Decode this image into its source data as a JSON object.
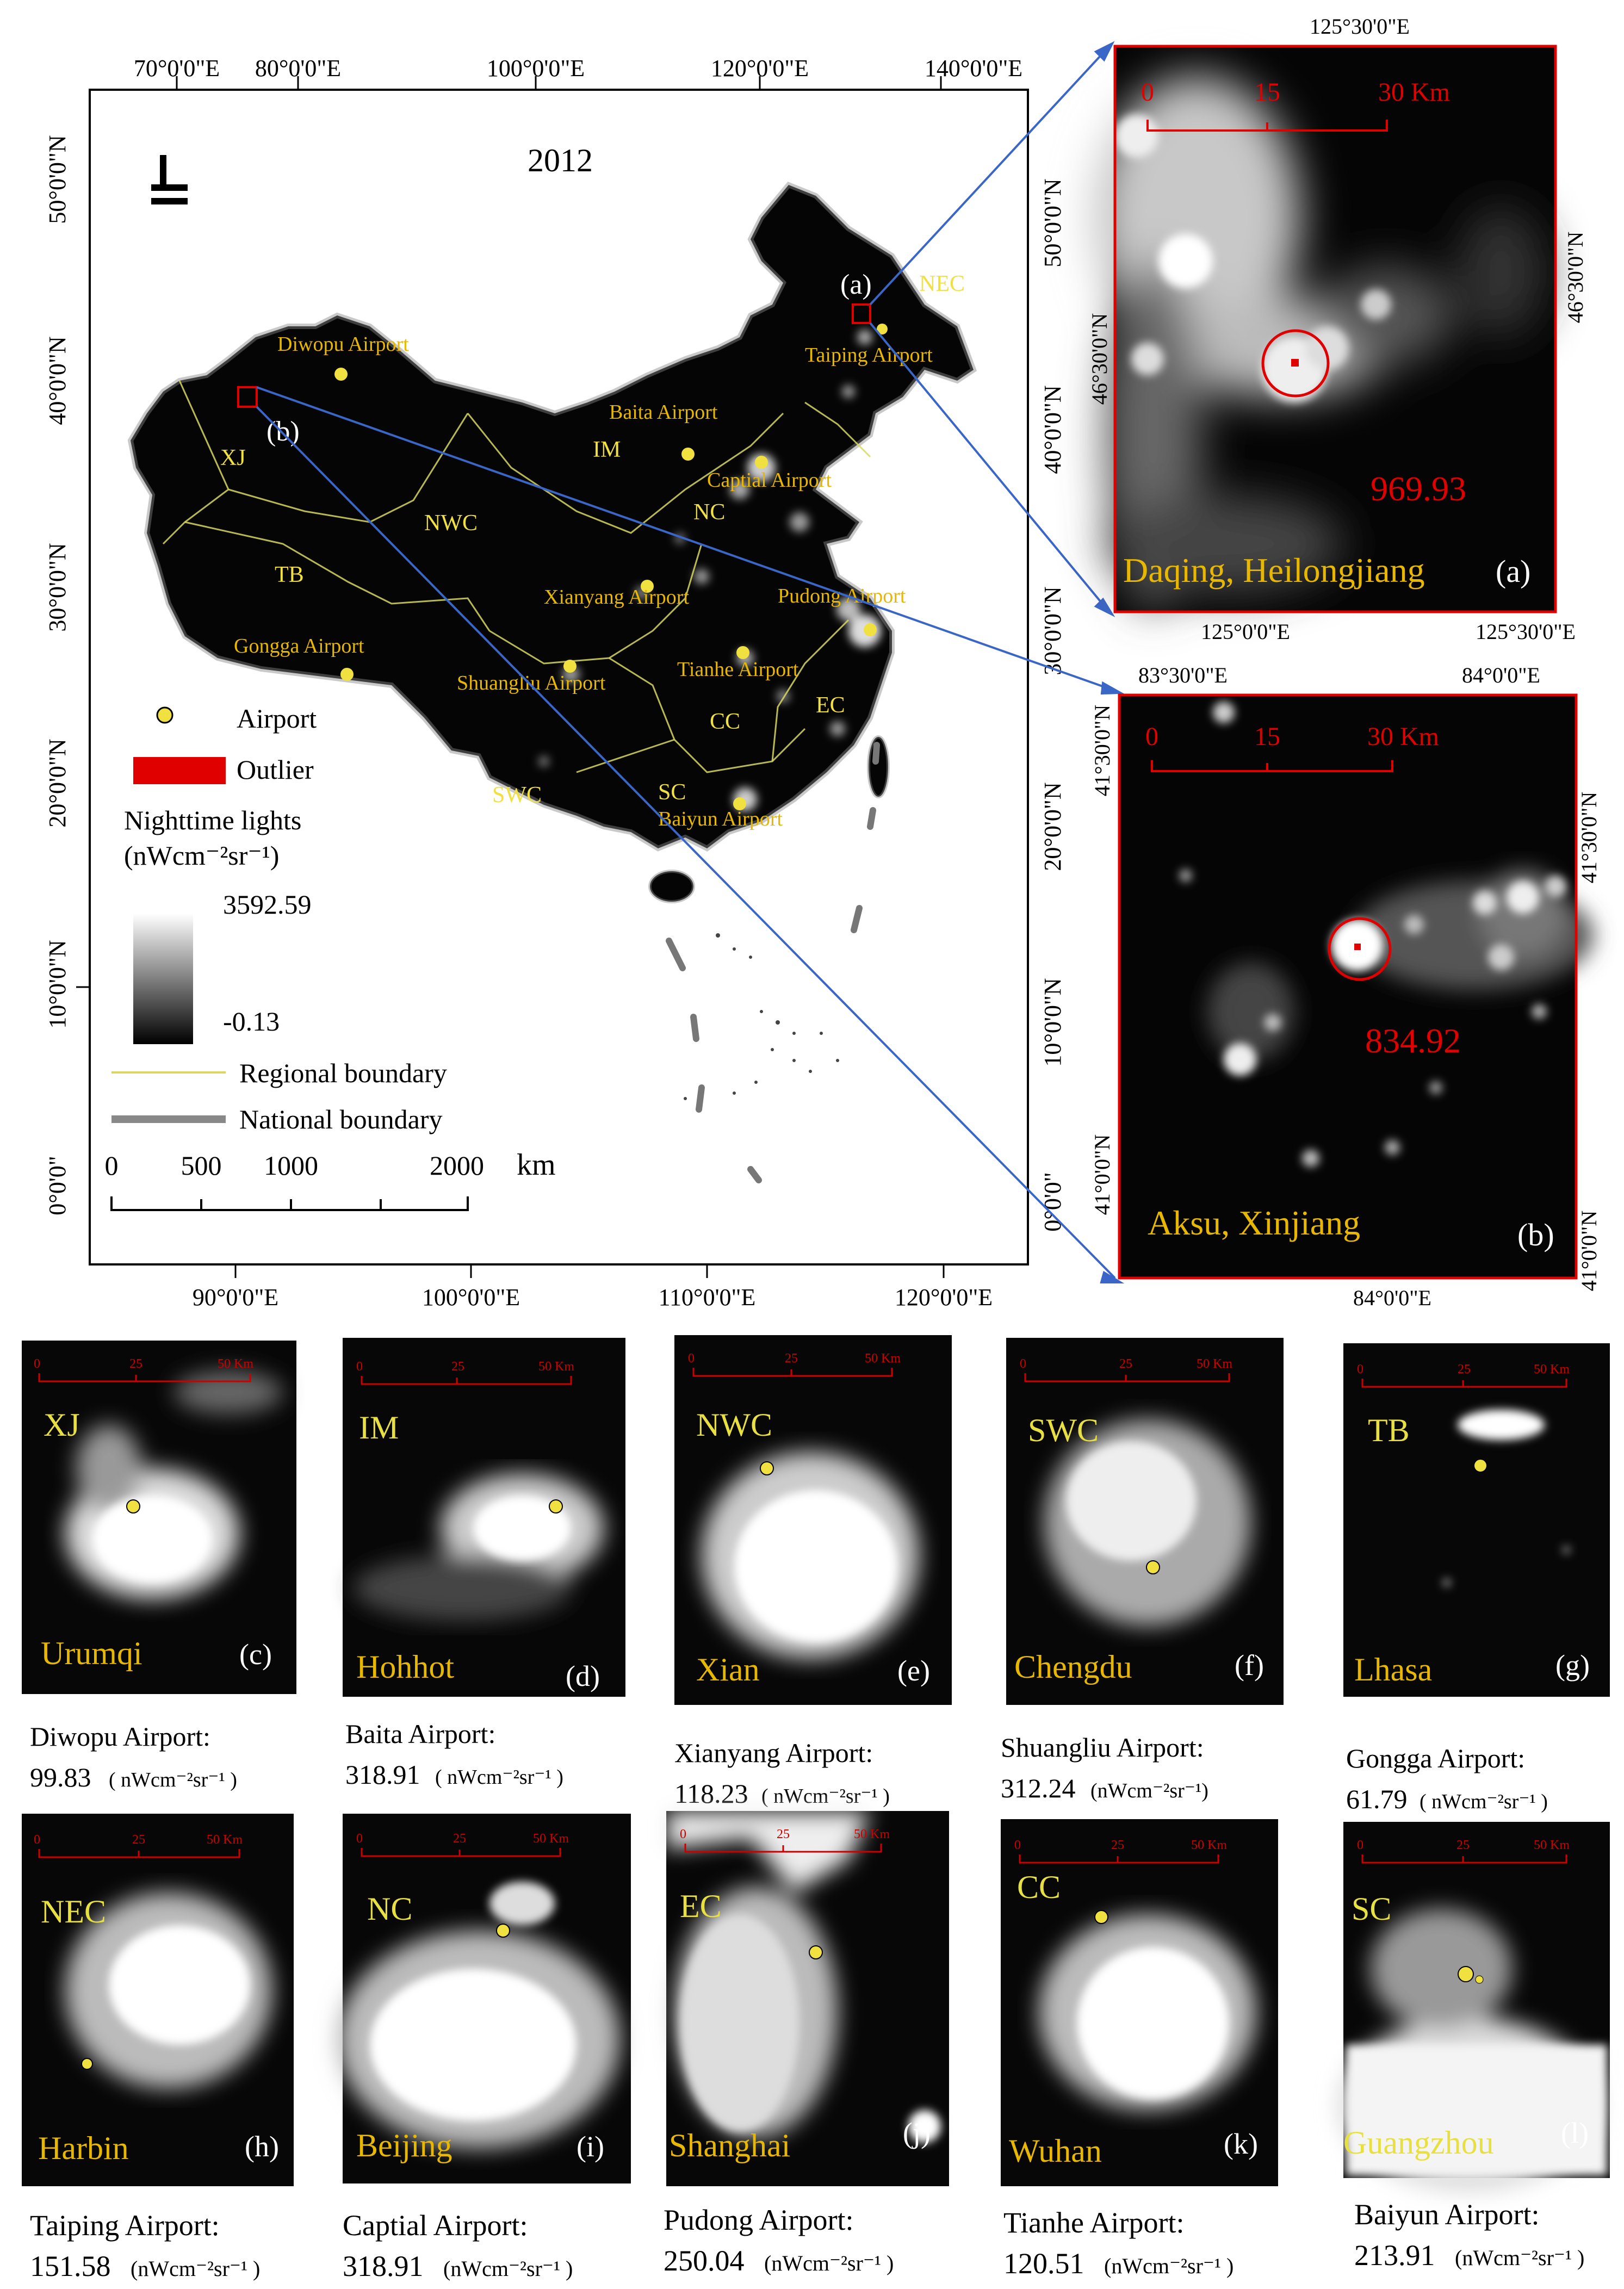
{
  "main_map": {
    "year": "2012",
    "top_lon_labels": [
      "70°0'0\"E",
      "80°0'0\"E",
      "100°0'0\"E",
      "120°0'0\"E",
      "140°0'0\"E"
    ],
    "bottom_lon_labels": [
      "90°0'0\"E",
      "100°0'0\"E",
      "110°0'0\"E",
      "120°0'0\"E"
    ],
    "left_lat_labels": [
      "50°0'0\"N",
      "40°0'0\"N",
      "30°0'0\"N",
      "20°0'0\"N",
      "10°0'0\"N",
      "0°0'0\""
    ],
    "right_lat_labels": [
      "50°0'0\"N",
      "40°0'0\"N",
      "30°0'0\"N",
      "20°0'0\"N",
      "10°0'0\"N",
      "0°0'0\""
    ],
    "regions": [
      "NEC",
      "XJ",
      "IM",
      "NWC",
      "NC",
      "TB",
      "EC",
      "CC",
      "SWC",
      "SC"
    ],
    "airports": [
      "Diwopu Airport",
      "Taiping Airport",
      "Baita Airport",
      "Captial Airport",
      "Xianyang Airport",
      "Pudong Airport",
      "Gongga Airport",
      "Tianhe Airport",
      "Shuangliu Airport",
      "Baiyun Airport"
    ],
    "callouts": [
      "(a)",
      "(b)"
    ],
    "legend": {
      "airport": "Airport",
      "outlier": "Outlier",
      "ntl_title": "Nighttime lights",
      "ntl_unit": "(nWcm⁻²sr⁻¹)",
      "max": "3592.59",
      "min": "-0.13",
      "regional": "Regional boundary",
      "national": "National boundary"
    },
    "scalebar": {
      "ticks": [
        "0",
        "500",
        "1000",
        "2000"
      ],
      "unit": "km"
    },
    "colors": {
      "airport": "#f0e040",
      "label": "#e8b800",
      "outlier": "#e00000",
      "boundary": "#d8d860",
      "arrow": "#3a66c8"
    }
  },
  "inset_a": {
    "city": "Daqing, Heilongjiang",
    "letter": "(a)",
    "value": "969.93",
    "top_label": "125°30'0\"E",
    "bottom_labels": [
      "125°0'0\"E",
      "125°30'0\"E"
    ],
    "left_label": "46°30'0\"N",
    "right_label": "46°30'0\"N",
    "scale_ticks": [
      "0",
      "15",
      "30 Km"
    ]
  },
  "inset_b": {
    "city": "Aksu, Xinjiang",
    "letter": "(b)",
    "value": "834.92",
    "top_labels": [
      "83°30'0\"E",
      "84°0'0\"E"
    ],
    "bottom_label": "84°0'0\"E",
    "left_labels": [
      "41°30'0\"N",
      "41°0'0\"N"
    ],
    "right_labels": [
      "41°30'0\"N",
      "41°0'0\"N"
    ],
    "scale_ticks": [
      "0",
      "15",
      "30 Km"
    ]
  },
  "mini_scale_ticks": [
    "0",
    "25",
    "50 Km"
  ],
  "panels_row1": [
    {
      "region": "XJ",
      "city": "Urumqi",
      "letter": "(c)",
      "airport": "Diwopu Airport:",
      "value": "99.83",
      "unit": "( nWcm⁻²sr⁻¹ )"
    },
    {
      "region": "IM",
      "city": "Hohhot",
      "letter": "(d)",
      "airport": "Baita Airport:",
      "value": "318.91",
      "unit": "( nWcm⁻²sr⁻¹ )"
    },
    {
      "region": "NWC",
      "city": "Xian",
      "letter": "(e)",
      "airport": "Xianyang Airport:",
      "value": "118.23",
      "unit": "( nWcm⁻²sr⁻¹ )"
    },
    {
      "region": "SWC",
      "city": "Chengdu",
      "letter": "(f)",
      "airport": "Shuangliu Airport:",
      "value": "312.24",
      "unit": "(nWcm⁻²sr⁻¹)"
    },
    {
      "region": "TB",
      "city": "Lhasa",
      "letter": "(g)",
      "airport": "Gongga Airport:",
      "value": "61.79",
      "unit": "( nWcm⁻²sr⁻¹ )"
    }
  ],
  "panels_row2": [
    {
      "region": "NEC",
      "city": "Harbin",
      "letter": "(h)",
      "airport": "Taiping Airport:",
      "value": "151.58",
      "unit": "(nWcm⁻²sr⁻¹ )"
    },
    {
      "region": "NC",
      "city": "Beijing",
      "letter": "(i)",
      "airport": "Captial Airport:",
      "value": "318.91",
      "unit": "(nWcm⁻²sr⁻¹ )"
    },
    {
      "region": "EC",
      "city": "Shanghai",
      "letter": "(j)",
      "airport": "Pudong Airport:",
      "value": "250.04",
      "unit": "(nWcm⁻²sr⁻¹ )"
    },
    {
      "region": "CC",
      "city": "Wuhan",
      "letter": "(k)",
      "airport": "Tianhe Airport:",
      "value": "120.51",
      "unit": "(nWcm⁻²sr⁻¹ )"
    },
    {
      "region": "SC",
      "city": "Guangzhou",
      "letter": "(l)",
      "airport": "Baiyun Airport:",
      "value": "213.91",
      "unit": "(nWcm⁻²sr⁻¹ )"
    }
  ]
}
